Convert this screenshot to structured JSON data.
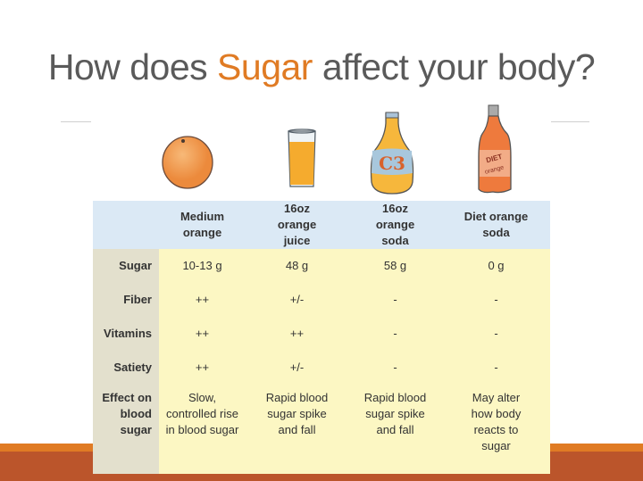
{
  "title": {
    "before": "How does ",
    "highlight": "Sugar",
    "after": " affect your body?"
  },
  "colors": {
    "accent": "#e07b24",
    "footer": "#bb552b",
    "header_row": "#dbe9f5",
    "body": "#fcf7c3",
    "label_col": "#e3e0cd"
  },
  "illustrations": [
    {
      "name": "orange-icon"
    },
    {
      "name": "juice-glass-icon"
    },
    {
      "name": "soda-bottle-icon"
    },
    {
      "name": "diet-soda-bottle-icon",
      "label_text": "DIET orange"
    }
  ],
  "table": {
    "columns": [
      "",
      "Medium orange",
      "16oz orange juice",
      "16oz orange soda",
      "Diet orange soda"
    ],
    "rows": [
      {
        "label": "Sugar",
        "values": [
          "10-13 g",
          "48 g",
          "58 g",
          "0 g"
        ]
      },
      {
        "label": "Fiber",
        "values": [
          "++",
          "+/-",
          "-",
          "-"
        ]
      },
      {
        "label": "Vitamins",
        "values": [
          "++",
          "++",
          "-",
          "-"
        ]
      },
      {
        "label": "Satiety",
        "values": [
          "++",
          "+/-",
          "-",
          "-"
        ]
      },
      {
        "label": "Effect on blood sugar",
        "values": [
          "Slow, controlled rise in blood sugar",
          "Rapid blood sugar spike and fall",
          "Rapid blood sugar spike and fall",
          "May alter how body reacts to sugar"
        ]
      }
    ]
  }
}
